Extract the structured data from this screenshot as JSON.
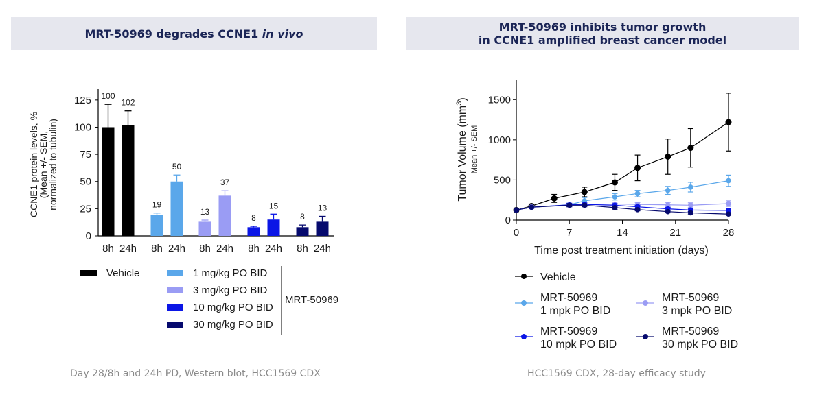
{
  "left_panel": {
    "title_main": "MRT-50969 degrades CCNE1 ",
    "title_italic": "in vivo",
    "caption": "Day 28/8h and 24h PD, Western blot, HCC1569 CDX",
    "group_label": "MRT-50969"
  },
  "right_panel": {
    "title_line1": "MRT-50969 inhibits tumor growth",
    "title_line2": "in CCNE1 amplified breast cancer model",
    "caption": "HCC1569 CDX, 28-day efficacy study"
  },
  "chart_data": [
    {
      "type": "bar",
      "title": "MRT-50969 degrades CCNE1 in vivo",
      "ylabel_lines": [
        "CCNE1 protein levels, %",
        "(Mean +/- SEM,",
        "normalized to tubulin)"
      ],
      "xlabel": "",
      "ylim": [
        0,
        135
      ],
      "yticks": [
        0,
        25,
        50,
        75,
        100,
        125
      ],
      "groups": [
        {
          "name": "Vehicle",
          "color": "#000000",
          "bars": [
            {
              "label": "8h",
              "value": 100,
              "err": 21,
              "text": "100"
            },
            {
              "label": "24h",
              "value": 102,
              "err": 13,
              "text": "102"
            }
          ]
        },
        {
          "name": "1 mg/kg PO BID",
          "color": "#5aa7ea",
          "bars": [
            {
              "label": "8h",
              "value": 19,
              "err": 2,
              "text": "19"
            },
            {
              "label": "24h",
              "value": 50,
              "err": 6,
              "text": "50"
            }
          ]
        },
        {
          "name": "3 mg/kg PO BID",
          "color": "#9a9cf4",
          "bars": [
            {
              "label": "8h",
              "value": 13,
              "err": 1.5,
              "text": "13"
            },
            {
              "label": "24h",
              "value": 37,
              "err": 4.5,
              "text": "37"
            }
          ]
        },
        {
          "name": "10 mg/kg PO BID",
          "color": "#0b16e6",
          "bars": [
            {
              "label": "8h",
              "value": 8,
              "err": 0.8,
              "text": "8"
            },
            {
              "label": "24h",
              "value": 15,
              "err": 5,
              "text": "15"
            }
          ]
        },
        {
          "name": "30 mg/kg PO BID",
          "color": "#060a6e",
          "bars": [
            {
              "label": "8h",
              "value": 8,
              "err": 2,
              "text": "8"
            },
            {
              "label": "24h",
              "value": 13,
              "err": 5,
              "text": "13"
            }
          ]
        }
      ]
    },
    {
      "type": "line",
      "title": "MRT-50969 inhibits tumor growth in CCNE1 amplified breast cancer model",
      "xlabel": "Time post treatment initiation (days)",
      "ylabel": "Tumor Volume (mm",
      "ylabel_sup": "3",
      "ylabel_close": ")",
      "ylabel_sub": "Mean +/- SEM",
      "xlim": [
        0,
        28
      ],
      "ylim": [
        0,
        1750
      ],
      "xticks": [
        0,
        7,
        14,
        21,
        28
      ],
      "yticks": [
        0,
        500,
        1000,
        1500
      ],
      "series": [
        {
          "name": "Vehicle",
          "legend_lines": [
            "Vehicle"
          ],
          "color": "#000000",
          "marker_size": 4.5,
          "x": [
            0,
            2,
            5,
            9,
            13,
            16,
            20,
            23,
            28
          ],
          "y": [
            125,
            175,
            270,
            350,
            470,
            650,
            790,
            900,
            1220
          ],
          "err": [
            20,
            25,
            50,
            60,
            100,
            160,
            220,
            240,
            360
          ]
        },
        {
          "name": "1 mpk PO BID",
          "legend_lines": [
            "MRT-50969",
            "1 mpk PO BID"
          ],
          "color": "#5aa7ea",
          "marker_size": 3.8,
          "x": [
            0,
            2,
            7,
            9,
            13,
            16,
            20,
            23,
            28
          ],
          "y": [
            125,
            160,
            190,
            240,
            290,
            330,
            370,
            410,
            490
          ],
          "err": [
            10,
            15,
            20,
            40,
            40,
            40,
            50,
            60,
            70
          ]
        },
        {
          "name": "3 mpk PO BID",
          "legend_lines": [
            "MRT-50969",
            "3 mpk PO BID"
          ],
          "color": "#9a9cf4",
          "marker_size": 3.8,
          "x": [
            0,
            2,
            7,
            9,
            13,
            16,
            20,
            23,
            28
          ],
          "y": [
            125,
            165,
            185,
            195,
            200,
            195,
            190,
            185,
            205
          ],
          "err": [
            10,
            15,
            20,
            20,
            25,
            25,
            30,
            30,
            35
          ]
        },
        {
          "name": "10 mpk PO BID",
          "legend_lines": [
            "MRT-50969",
            "10 mpk PO BID"
          ],
          "color": "#0b16e6",
          "marker_size": 3.8,
          "x": [
            0,
            2,
            7,
            9,
            13,
            16,
            20,
            23,
            28
          ],
          "y": [
            125,
            160,
            190,
            195,
            185,
            165,
            140,
            125,
            120
          ],
          "err": [
            10,
            15,
            20,
            20,
            20,
            20,
            20,
            20,
            20
          ]
        },
        {
          "name": "30 mpk PO BID",
          "legend_lines": [
            "MRT-50969",
            "30 mpk PO BID"
          ],
          "color": "#060a6e",
          "marker_size": 3.8,
          "x": [
            0,
            2,
            7,
            9,
            13,
            16,
            20,
            23,
            28
          ],
          "y": [
            125,
            160,
            185,
            185,
            155,
            130,
            105,
            90,
            75
          ],
          "err": [
            10,
            15,
            20,
            20,
            20,
            15,
            15,
            15,
            15
          ]
        }
      ]
    }
  ]
}
